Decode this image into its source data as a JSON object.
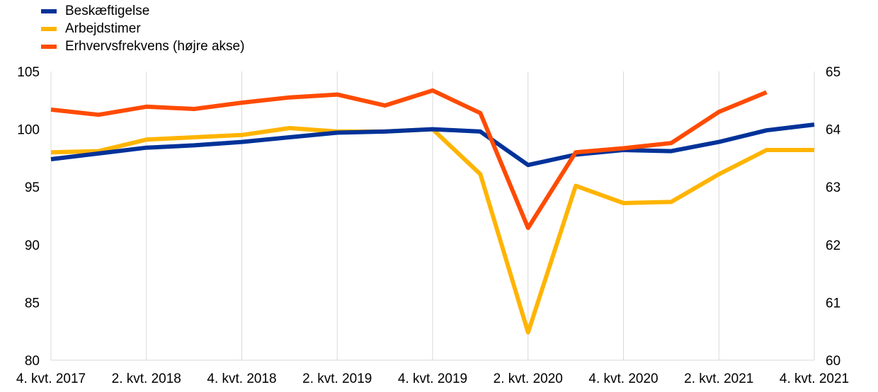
{
  "chart_data": {
    "type": "line",
    "title": "",
    "xlabel": "",
    "ylabel": "",
    "categories": [
      "4. kvt. 2017",
      "1. kvt. 2018",
      "2. kvt. 2018",
      "3. kvt. 2018",
      "4. kvt. 2018",
      "1. kvt. 2019",
      "2. kvt. 2019",
      "3. kvt. 2019",
      "4. kvt. 2019",
      "1. kvt. 2020",
      "2. kvt. 2020",
      "3. kvt. 2020",
      "4. kvt. 2020",
      "1. kvt. 2021",
      "2. kvt. 2021",
      "3. kvt. 2021",
      "4. kvt. 2021"
    ],
    "x_tick_labels": [
      "4. kvt. 2017",
      "2. kvt. 2018",
      "4. kvt. 2018",
      "2. kvt. 2019",
      "4. kvt. 2019",
      "2. kvt. 2020",
      "4. kvt. 2020",
      "2. kvt. 2021",
      "4. kvt. 2021"
    ],
    "x_tick_indices": [
      0,
      2,
      4,
      6,
      8,
      10,
      12,
      14,
      16
    ],
    "left_axis": {
      "min": 80,
      "max": 105,
      "ticks": [
        80,
        85,
        90,
        95,
        100,
        105
      ]
    },
    "right_axis": {
      "min": 60,
      "max": 65,
      "ticks": [
        60,
        61,
        62,
        63,
        64,
        65
      ]
    },
    "grid": "vertical",
    "legend_position": "top-left",
    "series": [
      {
        "name": "Beskæftigelse",
        "color": "#003299",
        "axis": "left",
        "values": [
          97.4,
          97.9,
          98.4,
          98.6,
          98.9,
          99.3,
          99.7,
          99.8,
          100.0,
          99.8,
          96.9,
          97.8,
          98.2,
          98.1,
          98.9,
          99.9,
          100.4
        ]
      },
      {
        "name": "Arbejdstimer",
        "color": "#FFB400",
        "axis": "left",
        "values": [
          98.0,
          98.1,
          99.1,
          99.3,
          99.5,
          100.1,
          99.8,
          99.8,
          100.0,
          96.1,
          82.4,
          95.1,
          93.6,
          93.7,
          96.1,
          98.2,
          98.2
        ]
      },
      {
        "name": "Erhvervsfrekvens (højre akse)",
        "color": "#FF4B00",
        "axis": "right",
        "values": [
          64.34,
          64.25,
          64.39,
          64.35,
          64.46,
          64.55,
          64.6,
          64.41,
          64.67,
          64.28,
          62.29,
          63.6,
          63.67,
          63.76,
          64.3,
          64.64,
          null
        ]
      }
    ]
  }
}
